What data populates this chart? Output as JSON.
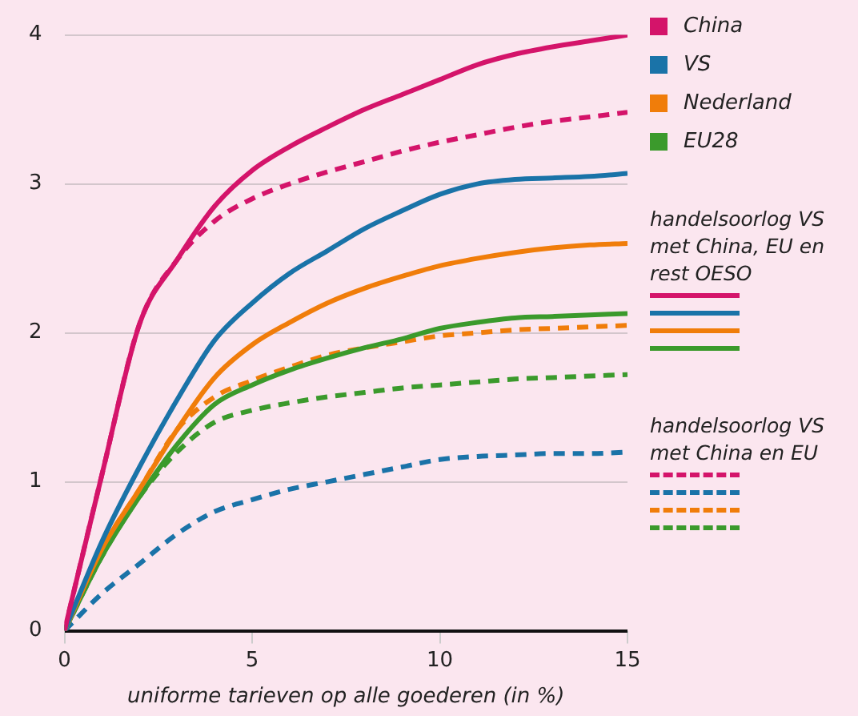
{
  "chart_data": {
    "type": "line",
    "xlabel": "uniforme tarieven op alle goederen (in %)",
    "x": [
      0,
      1,
      2,
      3,
      4,
      5,
      6,
      7,
      8,
      9,
      10,
      11,
      12,
      13,
      14,
      15
    ],
    "xlim": [
      0,
      15
    ],
    "xticks": [
      0,
      5,
      10,
      15
    ],
    "ylim": [
      0,
      4
    ],
    "yticks": [
      0,
      1,
      2,
      3,
      4
    ],
    "grid": "y",
    "legend": "right",
    "marker": "none",
    "annotations": [
      "handelsoorlog VS met China, EU en rest OESO",
      "handelsoorlog VS met China en EU"
    ],
    "series": [
      {
        "name": "China",
        "color": "#d4146a",
        "line_style": "solid",
        "values": [
          0,
          1.05,
          2.06,
          2.49,
          2.85,
          3.09,
          3.25,
          3.38,
          3.5,
          3.6,
          3.7,
          3.8,
          3.87,
          3.92,
          3.96,
          4.0
        ]
      },
      {
        "name": "VS",
        "color": "#1a73a8",
        "line_style": "solid",
        "values": [
          0,
          0.6,
          1.1,
          1.55,
          1.95,
          2.2,
          2.4,
          2.55,
          2.7,
          2.82,
          2.93,
          3.0,
          3.03,
          3.04,
          3.05,
          3.07
        ]
      },
      {
        "name": "Nederland",
        "color": "#f07d0a",
        "line_style": "solid",
        "values": [
          0,
          0.55,
          0.95,
          1.35,
          1.7,
          1.92,
          2.07,
          2.2,
          2.3,
          2.38,
          2.45,
          2.5,
          2.54,
          2.57,
          2.59,
          2.6
        ]
      },
      {
        "name": "EU28",
        "color": "#3b9a2c",
        "line_style": "solid",
        "values": [
          0,
          0.5,
          0.9,
          1.25,
          1.52,
          1.65,
          1.75,
          1.83,
          1.9,
          1.96,
          2.03,
          2.07,
          2.1,
          2.11,
          2.12,
          2.13
        ]
      },
      {
        "color": "#d4146a",
        "line_style": "dashed",
        "values": [
          0,
          1.05,
          2.06,
          2.49,
          2.75,
          2.9,
          3.0,
          3.08,
          3.15,
          3.22,
          3.28,
          3.33,
          3.38,
          3.42,
          3.45,
          3.48
        ]
      },
      {
        "color": "#1a73a8",
        "line_style": "dashed",
        "values": [
          0,
          0.25,
          0.45,
          0.65,
          0.8,
          0.88,
          0.95,
          1.0,
          1.05,
          1.1,
          1.15,
          1.17,
          1.18,
          1.19,
          1.19,
          1.2
        ]
      },
      {
        "color": "#f07d0a",
        "line_style": "dashed",
        "values": [
          0,
          0.55,
          0.95,
          1.35,
          1.57,
          1.68,
          1.77,
          1.85,
          1.9,
          1.94,
          1.98,
          2.0,
          2.02,
          2.03,
          2.04,
          2.05
        ]
      },
      {
        "color": "#3b9a2c",
        "line_style": "dashed",
        "values": [
          0,
          0.5,
          0.9,
          1.2,
          1.4,
          1.48,
          1.53,
          1.57,
          1.6,
          1.63,
          1.65,
          1.67,
          1.69,
          1.7,
          1.71,
          1.72
        ]
      }
    ]
  }
}
